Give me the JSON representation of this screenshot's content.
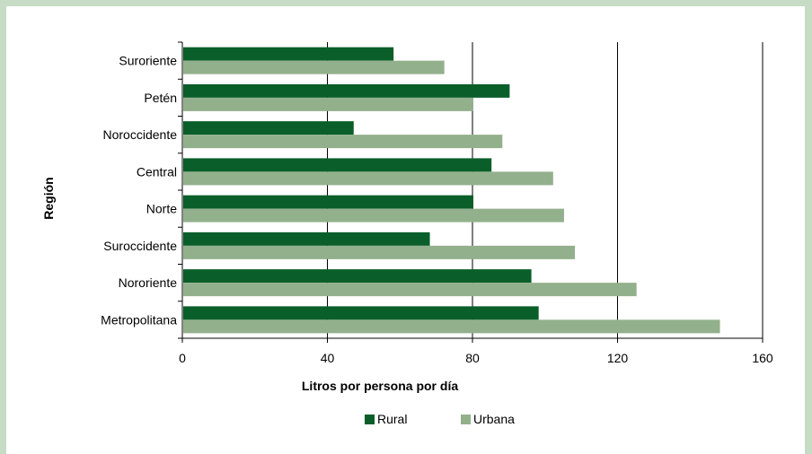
{
  "chart_data": {
    "type": "bar",
    "orientation": "horizontal",
    "categories": [
      "Suroriente",
      "Petén",
      "Noroccidente",
      "Central",
      "Norte",
      "Suroccidente",
      "Nororiente",
      "Metropolitana"
    ],
    "series": [
      {
        "name": "Rural",
        "color": "#0a5e2a",
        "values": [
          58,
          90,
          47,
          85,
          80,
          68,
          96,
          98
        ]
      },
      {
        "name": "Urbana",
        "color": "#93b08d",
        "values": [
          72,
          80,
          88,
          102,
          105,
          108,
          125,
          148
        ]
      }
    ],
    "xlabel": "Litros por persona por día",
    "ylabel": "Región",
    "xlim": [
      0,
      160
    ],
    "xticks": [
      0,
      40,
      80,
      120,
      160
    ],
    "grid": true,
    "legend_position": "bottom"
  }
}
